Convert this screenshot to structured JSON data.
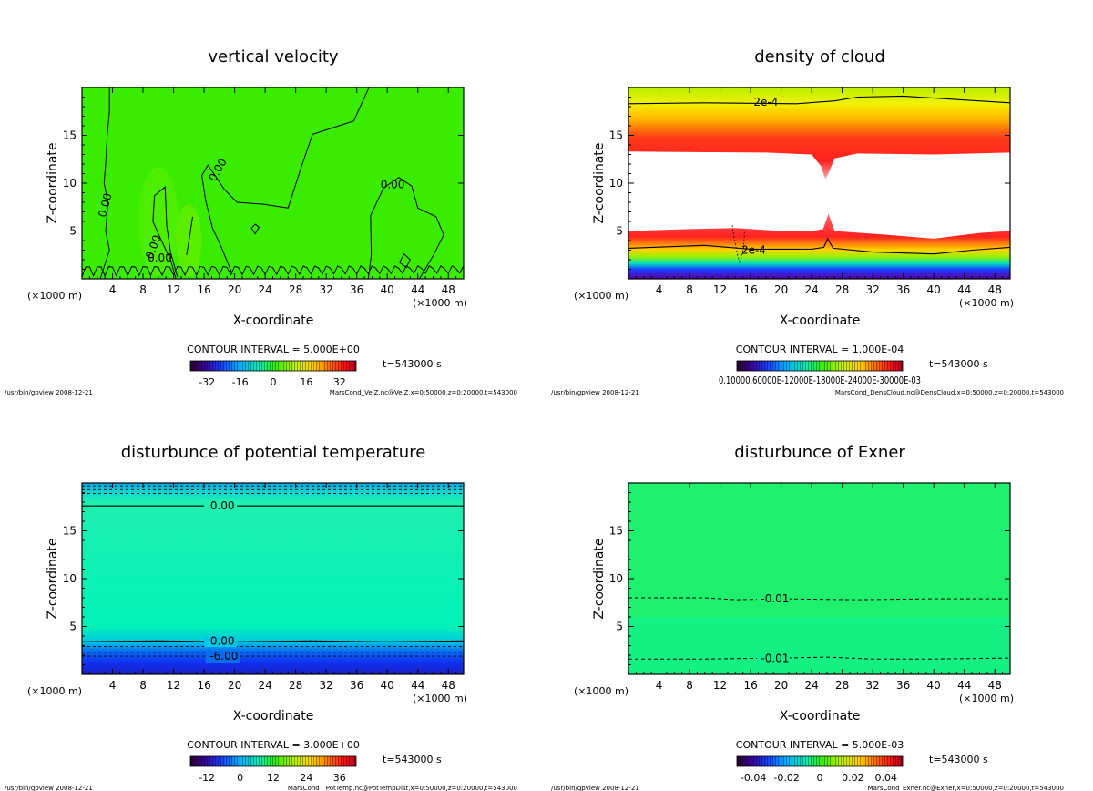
{
  "chart_data": [
    {
      "type": "heatmap",
      "title": "vertical velocity",
      "xlabel": "X-coordinate",
      "ylabel": "Z-coordinate",
      "x_unit_left": "(×1000 m)",
      "x_unit_right": "(×1000 m)",
      "xlim": [
        0,
        50
      ],
      "ylim": [
        0,
        20
      ],
      "xticks": [
        4,
        8,
        12,
        16,
        20,
        24,
        28,
        32,
        36,
        40,
        44,
        48
      ],
      "yticks": [
        5,
        10,
        15
      ],
      "contour_interval": "CONTOUR INTERVAL = 5.000E+00",
      "colorbar_ticks": [
        "-32",
        "-16",
        "0",
        "16",
        "32"
      ],
      "colorbar_range": [
        -40,
        40
      ],
      "time_label": "t=543000 s",
      "footer_left": "/usr/bin/gpview   2008-12-21",
      "footer_right": "MarsCond_VelZ.nc@VelZ,x=0:50000,z=0:20000,t=543000",
      "contour_labels": [
        "0.00",
        "0.00",
        "0.00",
        "0.00",
        "0.00"
      ],
      "field_color": "#39ec00"
    },
    {
      "type": "heatmap",
      "title": "density of cloud",
      "xlabel": "X-coordinate",
      "ylabel": "Z-coordinate",
      "x_unit_left": "(×1000 m)",
      "x_unit_right": "(×1000 m)",
      "xlim": [
        0,
        50
      ],
      "ylim": [
        0,
        20
      ],
      "xticks": [
        4,
        8,
        12,
        16,
        20,
        24,
        28,
        32,
        36,
        40,
        44,
        48
      ],
      "yticks": [
        5,
        10,
        15
      ],
      "contour_interval": "CONTOUR INTERVAL = 1.000E-04",
      "colorbar_ticks_text": "0.10000.60000E-12000E-18000E-24000E-30000E-03",
      "time_label": "t=543000 s",
      "footer_left": "/usr/bin/gpview   2008-12-21",
      "footer_right": "MarsCond_DensCloud.nc@DensCloud,x=0:50000,z=0:20000,t=543000",
      "contour_labels": [
        "2e-4",
        "2e-4"
      ]
    },
    {
      "type": "heatmap",
      "title": "disturbunce of potential temperature",
      "xlabel": "X-coordinate",
      "ylabel": "Z-coordinate",
      "x_unit_left": "(×1000 m)",
      "x_unit_right": "(×1000 m)",
      "xlim": [
        0,
        50
      ],
      "ylim": [
        0,
        20
      ],
      "xticks": [
        4,
        8,
        12,
        16,
        20,
        24,
        28,
        32,
        36,
        40,
        44,
        48
      ],
      "yticks": [
        5,
        10,
        15
      ],
      "contour_interval": "CONTOUR INTERVAL = 3.000E+00",
      "colorbar_ticks": [
        "-12",
        "0",
        "12",
        "24",
        "36"
      ],
      "colorbar_range": [
        -18,
        42
      ],
      "time_label": "t=543000 s",
      "footer_left": "/usr/bin/gpview   2008-12-21",
      "footer_right": "MarsCond__PotTemp.nc@PotTempDist,x=0:50000,z=0:20000,t=543000",
      "contour_labels": [
        "0.00",
        "0.00",
        "-6.00"
      ]
    },
    {
      "type": "heatmap",
      "title": "disturbunce of Exner",
      "xlabel": "X-coordinate",
      "ylabel": "Z-coordinate",
      "x_unit_left": "(×1000 m)",
      "x_unit_right": "(×1000 m)",
      "xlim": [
        0,
        50
      ],
      "ylim": [
        0,
        20
      ],
      "xticks": [
        4,
        8,
        12,
        16,
        20,
        24,
        28,
        32,
        36,
        40,
        44,
        48
      ],
      "yticks": [
        5,
        10,
        15
      ],
      "contour_interval": "CONTOUR INTERVAL = 5.000E-03",
      "colorbar_ticks": [
        "-0.04",
        "-0.02",
        "0",
        "0.02",
        "0.04"
      ],
      "colorbar_range": [
        -0.05,
        0.05
      ],
      "time_label": "t=543000 s",
      "footer_left": "/usr/bin/gpview   2008-12-21",
      "footer_right": "MarsCond_Exner.nc@Exner,x=0:50000,z=0:20000,t=543000",
      "contour_labels": [
        "-0.01",
        "-0.01"
      ],
      "field_color": "#1ff06e"
    }
  ]
}
